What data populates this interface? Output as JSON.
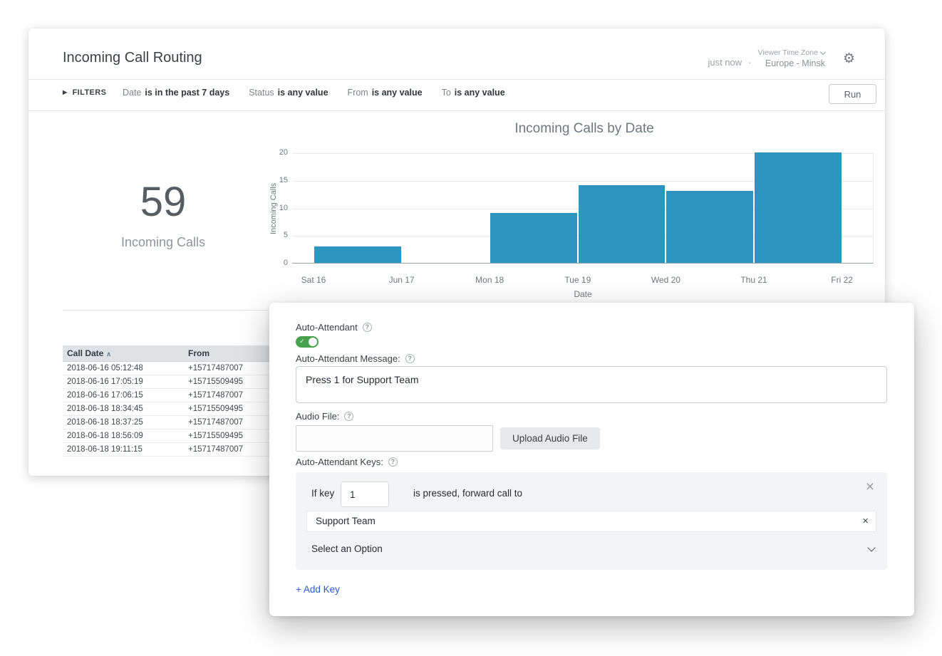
{
  "icons": {
    "gear": "⚙",
    "help": "?",
    "close": "×",
    "check": "✓",
    "sort_asc": "∧",
    "triangle": "▶"
  },
  "header": {
    "title": "Incoming Call Routing",
    "updated": "just now",
    "dot": "·",
    "timezone_label": "Viewer Time Zone",
    "timezone_value": "Europe - Minsk"
  },
  "filters": {
    "label": "FILTERS",
    "items": [
      {
        "field": "Date",
        "condition": "is in the past 7 days"
      },
      {
        "field": "Status",
        "condition": "is any value"
      },
      {
        "field": "From",
        "condition": "is any value"
      },
      {
        "field": "To",
        "condition": "is any value"
      }
    ],
    "run_label": "Run"
  },
  "kpi": {
    "value": "59",
    "label": "Incoming Calls"
  },
  "chart_data": {
    "type": "bar",
    "title": "Incoming Calls by Date",
    "xlabel": "Date",
    "ylabel": "Incoming Calls",
    "categories": [
      "Sat 16",
      "Jun 17",
      "Mon 18",
      "Tue 19",
      "Wed 20",
      "Thu 21",
      "Fri 22"
    ],
    "values": [
      3,
      0,
      9,
      14,
      13,
      20,
      0
    ],
    "ylim": [
      0,
      20
    ],
    "yticks": [
      0,
      5,
      10,
      15,
      20
    ],
    "bar_color": "#2c96bf",
    "grid": true,
    "legend": "none"
  },
  "table": {
    "columns": [
      "Call Date",
      "From"
    ],
    "sorted_by": "Call Date",
    "rows": [
      [
        "2018-06-16 05:12:48",
        "+15717487007"
      ],
      [
        "2018-06-16 17:05:19",
        "+15715509495"
      ],
      [
        "2018-06-16 17:06:15",
        "+15717487007"
      ],
      [
        "2018-06-18 18:34:45",
        "+15715509495"
      ],
      [
        "2018-06-18 18:37:25",
        "+15717487007"
      ],
      [
        "2018-06-18 18:56:09",
        "+15715509495"
      ],
      [
        "2018-06-18 19:11:15",
        "+15717487007"
      ]
    ]
  },
  "form": {
    "toggle_label": "Auto-Attendant",
    "toggle_state": "on",
    "message_label": "Auto-Attendant Message:",
    "message_value": "Press 1 for Support Team",
    "audio_label": "Audio File:",
    "audio_value": "",
    "upload_button": "Upload Audio File",
    "keys_label": "Auto-Attendant Keys:",
    "key_rule": {
      "prefix": "If key",
      "key_value": "1",
      "suffix": "is pressed, forward call to",
      "target_value": "Support Team",
      "dropdown_placeholder": "Select an Option"
    },
    "add_key_label": "+ Add Key"
  }
}
